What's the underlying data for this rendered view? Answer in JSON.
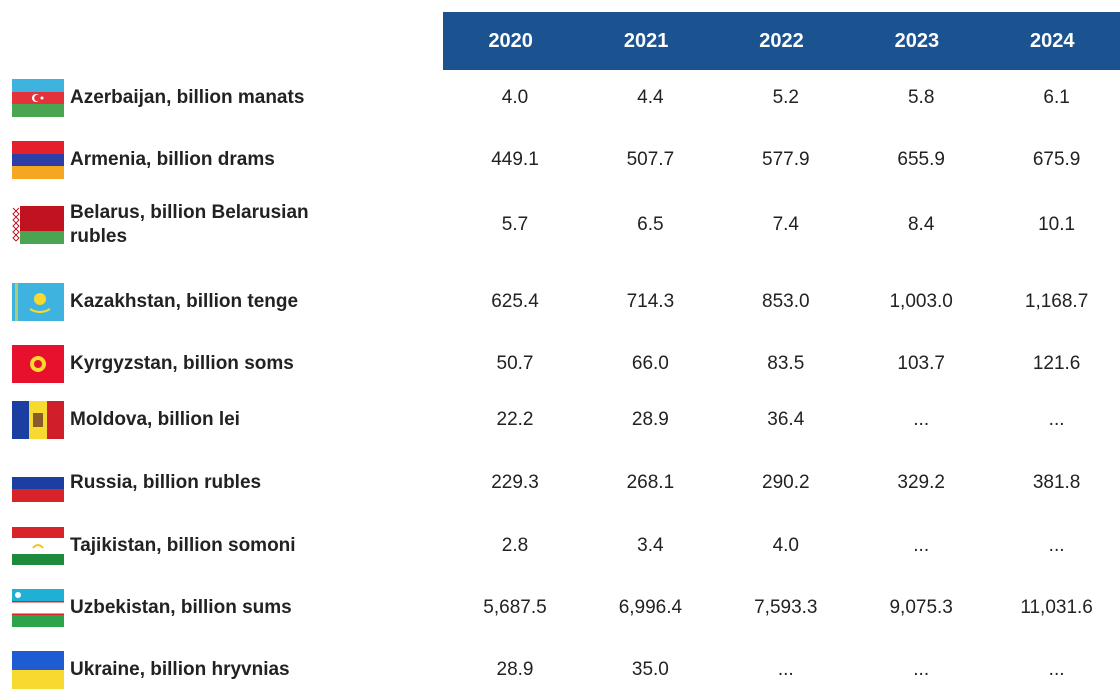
{
  "table": {
    "columns": [
      "2020",
      "2021",
      "2022",
      "2023",
      "2024"
    ],
    "rows": [
      {
        "label": "Azerbaijan, billion manats",
        "values": [
          "4.0",
          "4.4",
          "5.2",
          "5.8",
          "6.1"
        ]
      },
      {
        "label": "Armenia, billion drams",
        "values": [
          "449.1",
          "507.7",
          "577.9",
          "655.9",
          "675.9"
        ]
      },
      {
        "label": "Belarus, billion Belarusian rubles",
        "values": [
          "5.7",
          "6.5",
          "7.4",
          "8.4",
          "10.1"
        ]
      },
      {
        "label": "Kazakhstan, billion tenge",
        "values": [
          "625.4",
          "714.3",
          "853.0",
          "1,003.0",
          "1,168.7"
        ]
      },
      {
        "label": "Kyrgyzstan, billion soms",
        "values": [
          "50.7",
          "66.0",
          "83.5",
          "103.7",
          "121.6"
        ]
      },
      {
        "label": "Moldova, billion lei",
        "values": [
          "22.2",
          "28.9",
          "36.4",
          "...",
          "..."
        ]
      },
      {
        "label": "Russia, billion rubles",
        "values": [
          "229.3",
          "268.1",
          "290.2",
          "329.2",
          "381.8"
        ]
      },
      {
        "label": "Tajikistan, billion somoni",
        "values": [
          "2.8",
          "3.4",
          "4.0",
          "...",
          "..."
        ]
      },
      {
        "label": "Uzbekistan, billion sums",
        "values": [
          "5,687.5",
          "6,996.4",
          "7,593.3",
          "9,075.3",
          "11,031.6"
        ]
      },
      {
        "label": "Ukraine, billion hryvnias",
        "values": [
          "28.9",
          "35.0",
          "...",
          "...",
          "..."
        ]
      }
    ]
  }
}
